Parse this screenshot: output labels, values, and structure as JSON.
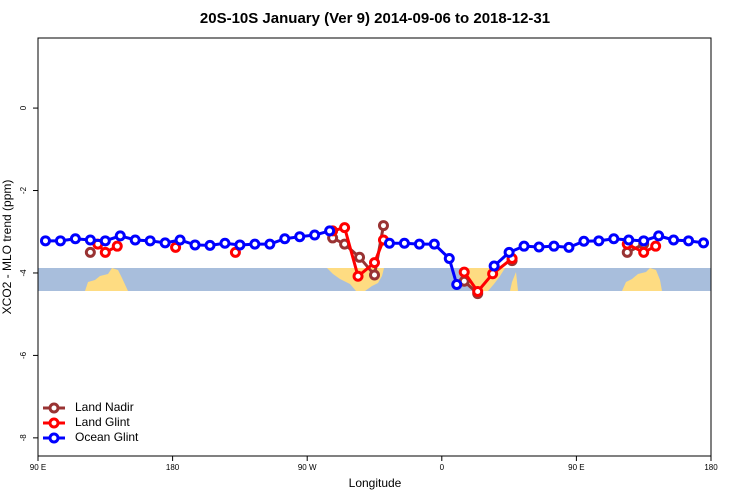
{
  "chart_data": {
    "type": "line",
    "title": "20S-10S January (Ver 9)   2014-09-06 to 2018-12-31",
    "x_label": "Longitude",
    "y_label": "XCO2 - MLO trend (ppm)",
    "xlim": [
      90,
      540
    ],
    "xticks": [
      {
        "value": 90,
        "label": "90 E"
      },
      180,
      {
        "value": 270,
        "label": "90 W"
      },
      {
        "value": 360,
        "label": "0"
      },
      {
        "value": 450,
        "label": "90 E"
      },
      {
        "value": 540,
        "label": "180"
      }
    ],
    "ylim": [
      -8.44,
      1.7
    ],
    "yticks": [
      0,
      -2,
      -4,
      -6,
      -8
    ],
    "grid": false,
    "legend": "bottom-left",
    "series": [
      {
        "name": "Land Nadir",
        "color": "#993333",
        "x": [
          125,
          null,
          287,
          295,
          305,
          315,
          321,
          null,
          375,
          384,
          null,
          407,
          null,
          484,
          495
        ],
        "values": [
          -3.5,
          null,
          -3.15,
          -3.3,
          -3.62,
          -4.05,
          -2.85,
          null,
          -4.2,
          -4.5,
          null,
          -3.7,
          null,
          -3.5,
          -3.3
        ]
      },
      {
        "name": "Land Glint",
        "color": "#ff0000",
        "x": [
          130,
          135,
          143,
          null,
          182,
          null,
          222,
          null,
          287,
          295,
          304,
          315,
          321,
          null,
          375,
          384,
          394,
          407,
          null,
          484,
          495,
          503
        ],
        "values": [
          -3.3,
          -3.5,
          -3.35,
          null,
          -3.38,
          null,
          -3.5,
          null,
          -2.98,
          -2.9,
          -4.08,
          -3.75,
          -3.2,
          null,
          -3.98,
          -4.45,
          -4.02,
          -3.65,
          null,
          -3.3,
          -3.5,
          -3.35
        ]
      },
      {
        "name": "Ocean Glint",
        "color": "#0000ff",
        "x": [
          95,
          105,
          115,
          125,
          135,
          145,
          155,
          165,
          175,
          185,
          195,
          205,
          215,
          225,
          235,
          245,
          255,
          265,
          275,
          285,
          null,
          325,
          335,
          345,
          355,
          365,
          370,
          null,
          395,
          405,
          415,
          425,
          435,
          445,
          455,
          465,
          475,
          485,
          495,
          505,
          515,
          525,
          535
        ],
        "values": [
          -3.22,
          -3.22,
          -3.17,
          -3.2,
          -3.22,
          -3.1,
          -3.2,
          -3.22,
          -3.27,
          -3.2,
          -3.32,
          -3.33,
          -3.28,
          -3.32,
          -3.3,
          -3.3,
          -3.17,
          -3.12,
          -3.08,
          -2.98,
          null,
          -3.28,
          -3.28,
          -3.3,
          -3.3,
          -3.65,
          -4.28,
          null,
          -3.83,
          -3.5,
          -3.35,
          -3.37,
          -3.35,
          -3.38,
          -3.23,
          -3.22,
          -3.17,
          -3.2,
          -3.22,
          -3.1,
          -3.2,
          -3.22,
          -3.27
        ]
      }
    ]
  }
}
